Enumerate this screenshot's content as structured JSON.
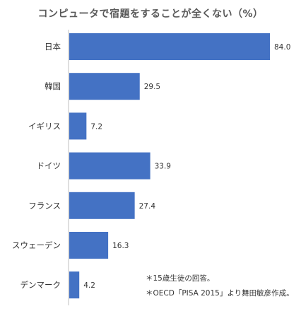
{
  "chart_data": {
    "type": "bar",
    "orientation": "horizontal",
    "title": "コンピュータで宿題をすることが全くない（%）",
    "categories": [
      "日本",
      "韓国",
      "イギリス",
      "ドイツ",
      "フランス",
      "スウェーデン",
      "デンマーク"
    ],
    "values": [
      84.0,
      29.5,
      7.2,
      33.9,
      27.4,
      16.3,
      4.2
    ],
    "value_labels": [
      "84.0",
      "29.5",
      "7.2",
      "33.9",
      "27.4",
      "16.3",
      "4.2"
    ],
    "xlim": [
      0,
      84.0
    ],
    "grid": false,
    "legend": "none",
    "bar_color": "#4472C4"
  },
  "notes": [
    "＊15歳生徒の回答。",
    "＊OECD「PISA 2015」より舞田敏彦作成。"
  ]
}
